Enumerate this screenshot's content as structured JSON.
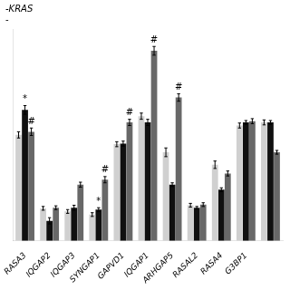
{
  "chart_data": {
    "type": "bar",
    "title": "-KRAS",
    "subtitle": "-",
    "categories": [
      "RASA3",
      "IQGAP2",
      "IQGAP3",
      "SYNGAP1",
      "GAPVD1",
      "IQGAP1",
      "ARHGAP5",
      "RASAL2",
      "RASA4",
      "G3BP1",
      null
    ],
    "series": [
      {
        "color": "#d0d0d0",
        "values": [
          1.7,
          0.52,
          0.47,
          0.42,
          1.55,
          2.0,
          1.42,
          0.57,
          1.22,
          1.85,
          1.9
        ],
        "errors": [
          0.05,
          0.03,
          0.03,
          0.03,
          0.04,
          0.05,
          0.07,
          0.03,
          0.06,
          0.04,
          0.04
        ]
      },
      {
        "color": "#101010",
        "values": [
          2.1,
          0.32,
          0.53,
          0.5,
          1.56,
          1.9,
          0.9,
          0.53,
          0.82,
          1.9,
          1.9
        ],
        "errors": [
          0.07,
          0.05,
          0.04,
          0.03,
          0.04,
          0.05,
          0.03,
          0.02,
          0.03,
          0.03,
          0.03
        ]
      },
      {
        "color": "#686868",
        "values": [
          1.75,
          0.53,
          0.9,
          0.98,
          1.9,
          3.05,
          2.3,
          0.58,
          1.08,
          1.92,
          1.42
        ],
        "errors": [
          0.06,
          0.03,
          0.04,
          0.05,
          0.05,
          0.07,
          0.06,
          0.03,
          0.04,
          0.04,
          0.03
        ]
      }
    ],
    "annotations": [
      {
        "text": "#",
        "category": "RASA3",
        "series": 2
      },
      {
        "text": "*",
        "category": "RASA3",
        "series": 1
      },
      {
        "text": "#",
        "category": "SYNGAP1",
        "series": 2
      },
      {
        "text": "#",
        "category": "GAPVD1",
        "series": 2
      },
      {
        "text": "#",
        "category": "IQGAP1",
        "series": 2
      },
      {
        "text": "#",
        "category": "ARHGAP5",
        "series": 2
      },
      {
        "text": "*",
        "category": "SYNGAP1",
        "series": 1
      }
    ],
    "ylim": [
      0,
      3.4
    ],
    "grid": false,
    "tick_labels": "x"
  }
}
